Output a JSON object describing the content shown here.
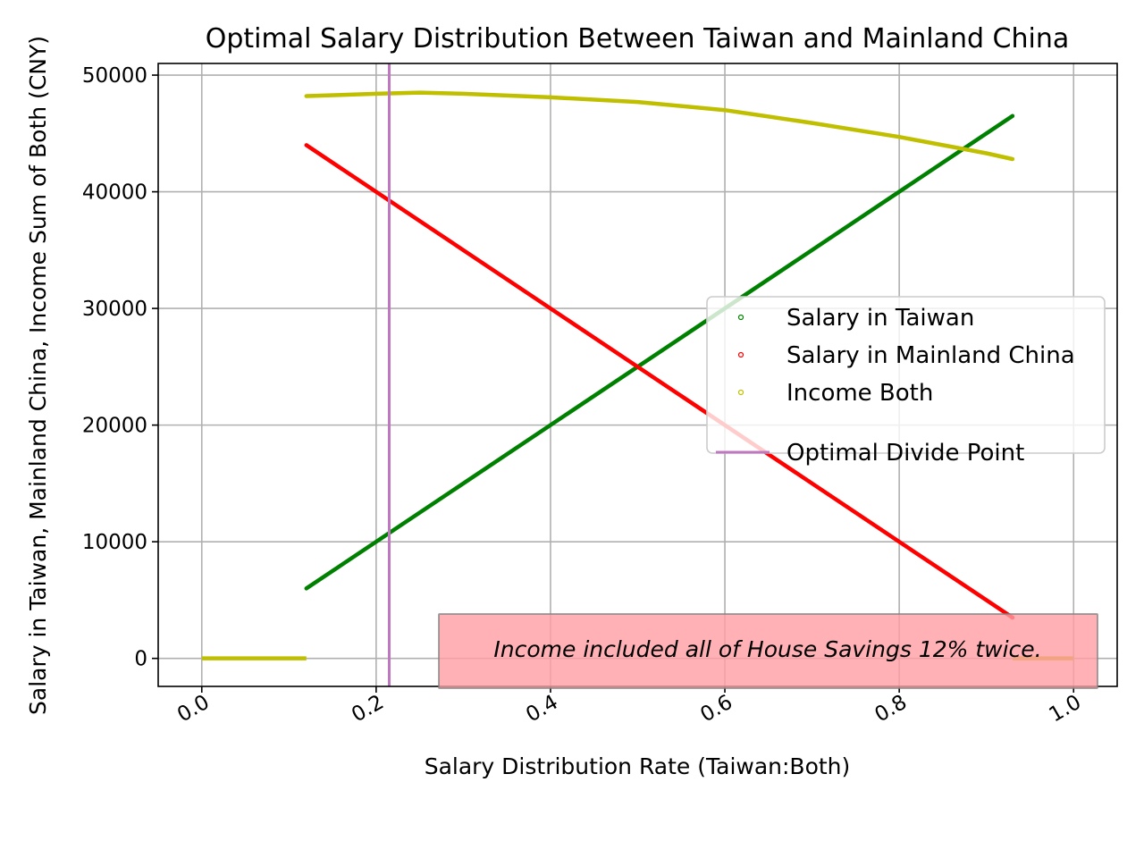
{
  "chart_data": {
    "type": "scatter",
    "title": "Optimal Salary Distribution Between Taiwan and Mainland China",
    "xlabel": "Salary Distribution Rate (Taiwan:Both)",
    "ylabel": "Salary in Taiwan, Mainland China, Income Sum of Both (CNY)",
    "xlim": [
      -0.05,
      1.05
    ],
    "ylim": [
      -2400,
      51000
    ],
    "xticks": [
      0.0,
      0.2,
      0.4,
      0.6,
      0.8,
      1.0
    ],
    "xtick_labels": [
      "0.0",
      "0.2",
      "0.4",
      "0.6",
      "0.8",
      "1.0"
    ],
    "yticks": [
      0,
      10000,
      20000,
      30000,
      40000,
      50000
    ],
    "ytick_labels": [
      "0",
      "10000",
      "20000",
      "30000",
      "40000",
      "50000"
    ],
    "grid": true,
    "legend_position": "center-right",
    "series": [
      {
        "name": "Salary in Taiwan",
        "color": "#008000",
        "marker": "o",
        "x": [
          0.12,
          0.93
        ],
        "y": [
          6000,
          46500
        ]
      },
      {
        "name": "Salary in Mainland China",
        "color": "#ff0000",
        "marker": "o",
        "x": [
          0.12,
          0.93
        ],
        "y": [
          44000,
          3500
        ]
      },
      {
        "name": "Income Both",
        "color": "#bfbf00",
        "marker": "o",
        "x": [
          0.12,
          0.2,
          0.25,
          0.3,
          0.4,
          0.5,
          0.6,
          0.7,
          0.8,
          0.9,
          0.93
        ],
        "y": [
          48200,
          48400,
          48500,
          48400,
          48100,
          47700,
          47000,
          45900,
          44700,
          43300,
          42800
        ]
      },
      {
        "name": "Optimal Divide Point",
        "type": "vline",
        "color": "#bf77bf",
        "x": 0.215
      }
    ],
    "zero_segments": [
      {
        "color": "#bfbf00",
        "x": [
          0.0,
          0.12
        ],
        "y": 0
      },
      {
        "color": "#bfbf00",
        "x": [
          0.93,
          1.0
        ],
        "y": 0
      }
    ],
    "annotation": {
      "text": "Income included all of House Savings 12% twice.",
      "background": "#ff9da3",
      "position": "bottom-right"
    }
  }
}
